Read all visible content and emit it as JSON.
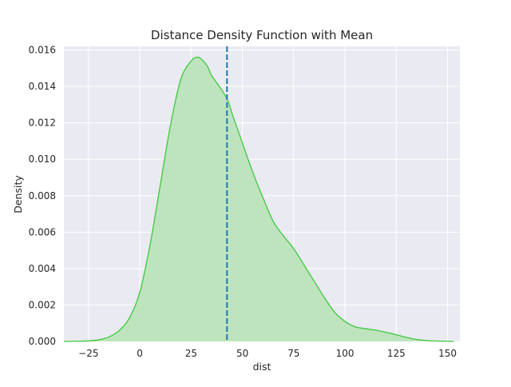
{
  "chart_data": {
    "type": "area",
    "title": "Distance Density Function with Mean",
    "xlabel": "dist",
    "ylabel": "Density",
    "xlim": [
      -37,
      156
    ],
    "ylim": [
      0,
      0.0162
    ],
    "xticks": [
      -25,
      0,
      25,
      50,
      75,
      100,
      125,
      150
    ],
    "xtick_labels": [
      "−25",
      "0",
      "25",
      "50",
      "75",
      "100",
      "125",
      "150"
    ],
    "yticks": [
      0,
      0.002,
      0.004,
      0.006,
      0.008,
      0.01,
      0.012,
      0.014,
      0.016
    ],
    "ytick_labels": [
      "0.000",
      "0.002",
      "0.004",
      "0.006",
      "0.008",
      "0.010",
      "0.012",
      "0.014",
      "0.016"
    ],
    "grid": true,
    "background": "#eaeaf2",
    "gridcolor": "#ffffff",
    "series": [
      {
        "color": "#40c840",
        "fill": "#bde4bd",
        "x": [
          -37,
          -30,
          -25,
          -20,
          -15,
          -10,
          -5,
          0,
          5,
          10,
          15,
          20,
          25,
          28,
          30,
          33,
          35,
          40,
          43,
          45,
          50,
          55,
          60,
          65,
          70,
          75,
          80,
          85,
          90,
          95,
          100,
          105,
          110,
          115,
          120,
          125,
          130,
          135,
          140,
          145,
          150,
          153
        ],
        "y": [
          0.0,
          1e-05,
          3e-05,
          9e-05,
          0.00025,
          0.0006,
          0.0013,
          0.0027,
          0.0053,
          0.0086,
          0.0119,
          0.0144,
          0.0154,
          0.0156,
          0.0155,
          0.0151,
          0.0146,
          0.0138,
          0.0132,
          0.0125,
          0.0109,
          0.0093,
          0.0079,
          0.0066,
          0.0058,
          0.0051,
          0.0042,
          0.0033,
          0.0024,
          0.0016,
          0.0011,
          0.0008,
          0.0007,
          0.00062,
          0.0005,
          0.00037,
          0.00022,
          0.00011,
          5e-05,
          2e-05,
          1e-05,
          0.0
        ]
      }
    ],
    "mean_line": {
      "x": 42.5,
      "color": "#1f77b4",
      "style": "dashed"
    }
  }
}
